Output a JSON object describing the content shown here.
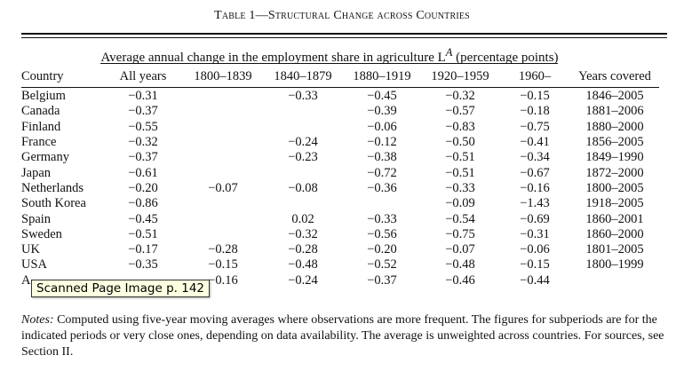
{
  "title": {
    "label": "Table 1",
    "dash": "—",
    "text": "Structural Change across Countries"
  },
  "spanner": "Average annual change in the employment share in agriculture L",
  "spanner_sup": "A",
  "spanner_tail": " (percentage points)",
  "columns": [
    "Country",
    "All years",
    "1800–1839",
    "1840–1879",
    "1880–1919",
    "1920–1959",
    "1960–",
    "Years covered"
  ],
  "rows": [
    {
      "country": "Belgium",
      "all": "−0.31",
      "p1": "",
      "p2": "−0.33",
      "p3": "−0.45",
      "p4": "−0.32",
      "p5": "−0.15",
      "years": "1846–2005"
    },
    {
      "country": "Canada",
      "all": "−0.37",
      "p1": "",
      "p2": "",
      "p3": "−0.39",
      "p4": "−0.57",
      "p5": "−0.18",
      "years": "1881–2006"
    },
    {
      "country": "Finland",
      "all": "−0.55",
      "p1": "",
      "p2": "",
      "p3": "−0.06",
      "p4": "−0.83",
      "p5": "−0.75",
      "years": "1880–2000"
    },
    {
      "country": "France",
      "all": "−0.32",
      "p1": "",
      "p2": "−0.24",
      "p3": "−0.12",
      "p4": "−0.50",
      "p5": "−0.41",
      "years": "1856–2005"
    },
    {
      "country": "Germany",
      "all": "−0.37",
      "p1": "",
      "p2": "−0.23",
      "p3": "−0.38",
      "p4": "−0.51",
      "p5": "−0.34",
      "years": "1849–1990"
    },
    {
      "country": "Japan",
      "all": "−0.61",
      "p1": "",
      "p2": "",
      "p3": "−0.72",
      "p4": "−0.51",
      "p5": "−0.67",
      "years": "1872–2000"
    },
    {
      "country": "Netherlands",
      "all": "−0.20",
      "p1": "−0.07",
      "p2": "−0.08",
      "p3": "−0.36",
      "p4": "−0.33",
      "p5": "−0.16",
      "years": "1800–2005"
    },
    {
      "country": "South Korea",
      "all": "−0.86",
      "p1": "",
      "p2": "",
      "p3": "",
      "p4": "−0.09",
      "p5": "−1.43",
      "years": "1918–2005"
    },
    {
      "country": "Spain",
      "all": "−0.45",
      "p1": "",
      "p2": "0.02",
      "p3": "−0.33",
      "p4": "−0.54",
      "p5": "−0.69",
      "years": "1860–2001"
    },
    {
      "country": "Sweden",
      "all": "−0.51",
      "p1": "",
      "p2": "−0.32",
      "p3": "−0.56",
      "p4": "−0.75",
      "p5": "−0.31",
      "years": "1860–2000"
    },
    {
      "country": "UK",
      "all": "−0.17",
      "p1": "−0.28",
      "p2": "−0.28",
      "p3": "−0.20",
      "p4": "−0.07",
      "p5": "−0.06",
      "years": "1801–2005"
    },
    {
      "country": "USA",
      "all": "−0.35",
      "p1": "−0.15",
      "p2": "−0.48",
      "p3": "−0.52",
      "p4": "−0.48",
      "p5": "−0.15",
      "years": "1800–1999"
    },
    {
      "country": "A",
      "all": "",
      "p1": "−0.16",
      "p2": "−0.24",
      "p3": "−0.37",
      "p4": "−0.46",
      "p5": "−0.44",
      "years": ""
    }
  ],
  "notes": {
    "label": "Notes:",
    "text": " Computed using five-year moving averages where observations are more frequent. The figures for subperiods are for the indicated periods or very close ones, depending on data availability. The average is unweighted across countries. For sources, see Section II."
  },
  "tooltip": "Scanned Page Image p. 142"
}
